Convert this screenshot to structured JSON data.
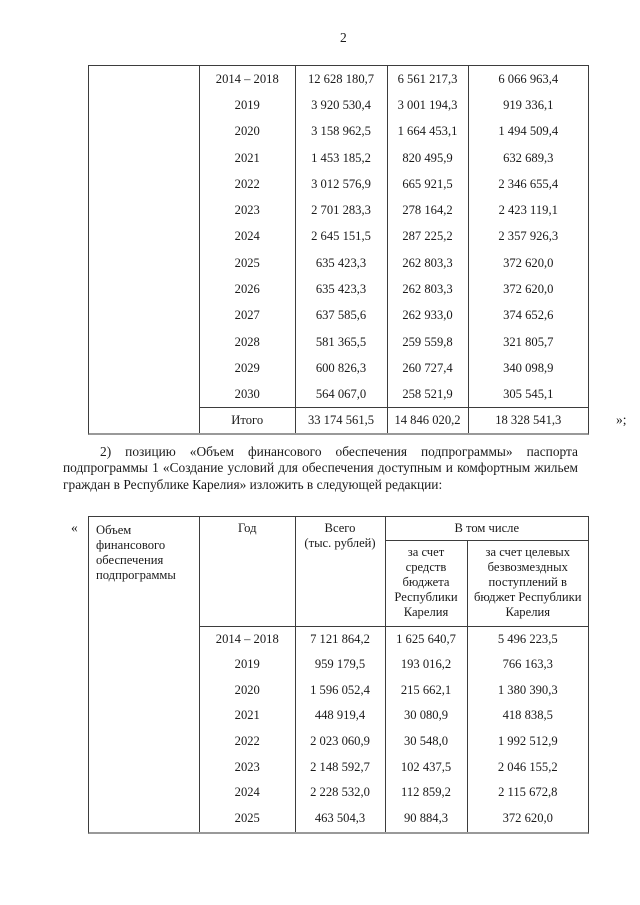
{
  "page_number": "2",
  "quote_marks": {
    "table1_closing": "»;",
    "table2_opening": "«"
  },
  "intro_paragraph": "2) позицию «Объем финансового обеспечения подпрограммы» паспорта подпрограммы 1 «Создание условий для обеспечения доступным и комфортным жильем граждан в Республике Карелия» изложить в следующей редакции:",
  "table1": {
    "rows": [
      {
        "year": "2014 – 2018",
        "total": "12 628 180,7",
        "budget": "6 561 217,3",
        "targeted": "6 066 963,4"
      },
      {
        "year": "2019",
        "total": "3 920 530,4",
        "budget": "3 001 194,3",
        "targeted": "919 336,1"
      },
      {
        "year": "2020",
        "total": "3 158 962,5",
        "budget": "1 664 453,1",
        "targeted": "1 494 509,4"
      },
      {
        "year": "2021",
        "total": "1 453 185,2",
        "budget": "820 495,9",
        "targeted": "632 689,3"
      },
      {
        "year": "2022",
        "total": "3 012 576,9",
        "budget": "665 921,5",
        "targeted": "2 346 655,4"
      },
      {
        "year": "2023",
        "total": "2 701 283,3",
        "budget": "278 164,2",
        "targeted": "2 423 119,1"
      },
      {
        "year": "2024",
        "total": "2 645 151,5",
        "budget": "287 225,2",
        "targeted": "2 357 926,3"
      },
      {
        "year": "2025",
        "total": "635 423,3",
        "budget": "262 803,3",
        "targeted": "372 620,0"
      },
      {
        "year": "2026",
        "total": "635 423,3",
        "budget": "262 803,3",
        "targeted": "372 620,0"
      },
      {
        "year": "2027",
        "total": "637 585,6",
        "budget": "262 933,0",
        "targeted": "374 652,6"
      },
      {
        "year": "2028",
        "total": "581 365,5",
        "budget": "259 559,8",
        "targeted": "321 805,7"
      },
      {
        "year": "2029",
        "total": "600 826,3",
        "budget": "260 727,4",
        "targeted": "340 098,9"
      },
      {
        "year": "2030",
        "total": "564 067,0",
        "budget": "258 521,9",
        "targeted": "305 545,1"
      }
    ],
    "total_row": {
      "label": "Итого",
      "total": "33 174 561,5",
      "budget": "14 846 020,2",
      "targeted": "18 328 541,3"
    }
  },
  "table2": {
    "row_header": "Объем\nфинансового\nобеспечения\nподпрограммы",
    "columns": {
      "year": "Год",
      "total": "Всего\n(тыс. рублей)",
      "breakdown": "В том числе",
      "budget": "за счет\nсредств\nбюджета\nРеспублики\nКарелия",
      "targeted": "за счет целевых\nбезвозмездных\nпоступлений в\nбюджет Республики\nКарелия"
    },
    "rows": [
      {
        "year": "2014 – 2018",
        "total": "7 121 864,2",
        "budget": "1 625 640,7",
        "targeted": "5 496 223,5"
      },
      {
        "year": "2019",
        "total": "959 179,5",
        "budget": "193 016,2",
        "targeted": "766 163,3"
      },
      {
        "year": "2020",
        "total": "1 596 052,4",
        "budget": "215 662,1",
        "targeted": "1 380 390,3"
      },
      {
        "year": "2021",
        "total": "448 919,4",
        "budget": "30 080,9",
        "targeted": "418 838,5"
      },
      {
        "year": "2022",
        "total": "2 023 060,9",
        "budget": "30 548,0",
        "targeted": "1 992 512,9"
      },
      {
        "year": "2023",
        "total": "2 148 592,7",
        "budget": "102 437,5",
        "targeted": "2 046 155,2"
      },
      {
        "year": "2024",
        "total": "2 228 532,0",
        "budget": "112 859,2",
        "targeted": "2 115 672,8"
      },
      {
        "year": "2025",
        "total": "463 504,3",
        "budget": "90 884,3",
        "targeted": "372 620,0"
      }
    ]
  }
}
